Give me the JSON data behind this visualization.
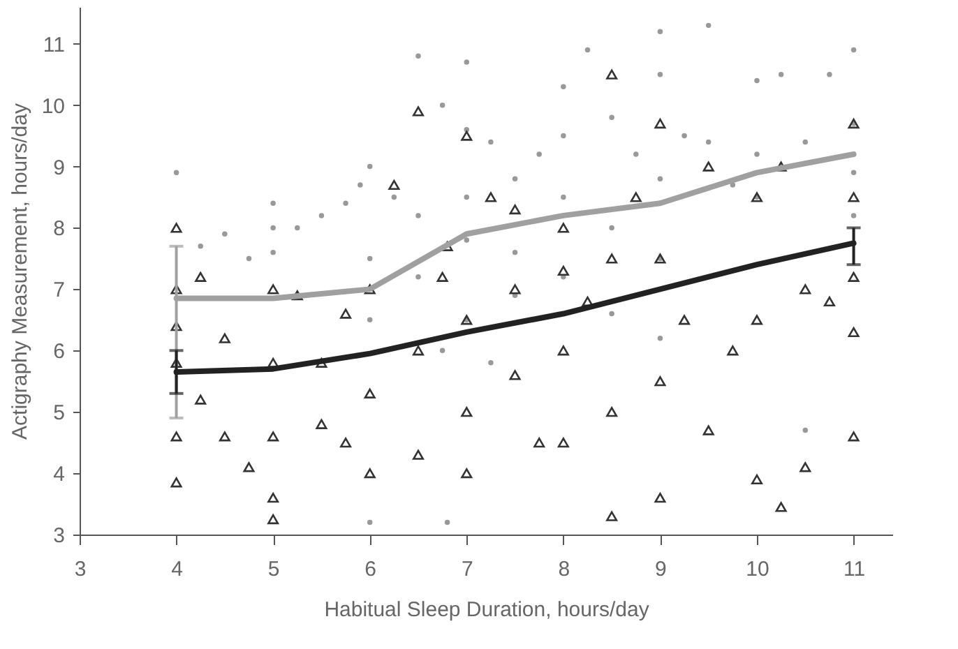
{
  "chart_data": {
    "type": "scatter",
    "xlabel": "Habitual Sleep Duration, hours/day",
    "ylabel": "Actigraphy Measurement, hours/day",
    "xlim": [
      3,
      11.4
    ],
    "ylim": [
      3,
      11.6
    ],
    "xticks": [
      3,
      4,
      5,
      6,
      7,
      8,
      9,
      10,
      11
    ],
    "yticks": [
      3,
      4,
      5,
      6,
      7,
      8,
      9,
      10,
      11
    ],
    "grid": false,
    "series": [
      {
        "type": "scatter",
        "marker": "circle",
        "color": "#999999",
        "x": [
          4,
          4.25,
          4.5,
          4.75,
          5,
          5,
          5,
          5.25,
          5.5,
          5.75,
          5.9,
          6,
          6,
          6,
          6.25,
          6.5,
          6.5,
          6.75,
          7,
          7,
          7,
          7,
          7,
          7.25,
          7.5,
          7.5,
          7.75,
          8,
          8,
          8,
          8.25,
          8.5,
          8.5,
          8.75,
          9,
          9,
          9,
          9,
          9,
          9.25,
          9.5,
          9.5,
          9.75,
          10,
          10,
          10,
          10.25,
          10.5,
          10.75,
          11,
          11,
          11,
          11,
          6,
          6.8,
          10.5,
          7.5,
          8.5,
          6.5,
          8,
          7.25,
          6.75
        ],
        "values": [
          8.9,
          7.7,
          7.9,
          7.5,
          8.4,
          8.0,
          7.6,
          8.0,
          8.2,
          8.4,
          8.7,
          9.0,
          7.5,
          6.5,
          8.5,
          10.8,
          8.2,
          10.0,
          10.7,
          9.6,
          8.5,
          7.8,
          6.5,
          9.4,
          8.8,
          7.6,
          9.2,
          10.3,
          8.5,
          7.2,
          10.9,
          9.8,
          8.0,
          9.2,
          11.2,
          10.5,
          8.8,
          7.5,
          6.2,
          9.5,
          11.3,
          9.4,
          8.7,
          10.4,
          9.2,
          8.5,
          10.5,
          9.4,
          10.5,
          10.9,
          9.7,
          8.9,
          8.2,
          3.2,
          3.2,
          4.7,
          6.9,
          6.6,
          7.2,
          9.5,
          5.8,
          6.0
        ]
      },
      {
        "type": "scatter",
        "marker": "triangle",
        "color": "#333333",
        "x": [
          4,
          4,
          4,
          4,
          4,
          4,
          4.25,
          4.25,
          4.5,
          4.5,
          4.75,
          5,
          5,
          5,
          5,
          5,
          5.25,
          5.5,
          5.5,
          5.75,
          5.75,
          6,
          6,
          6,
          6.25,
          6.5,
          6.5,
          6.5,
          6.75,
          7,
          7,
          7,
          7,
          7.25,
          7.5,
          7.5,
          7.75,
          8,
          8,
          8,
          8.25,
          8.5,
          8.5,
          8.5,
          8.5,
          8.75,
          9,
          9,
          9,
          9,
          9.25,
          9.5,
          9.5,
          9.75,
          10,
          10,
          10,
          10.25,
          10.25,
          10.5,
          10.5,
          10.75,
          11,
          11,
          11,
          11,
          11,
          6.8,
          7.5,
          8
        ],
        "values": [
          8.0,
          7.0,
          6.4,
          5.8,
          4.6,
          3.85,
          7.2,
          5.2,
          6.2,
          4.6,
          4.1,
          7.0,
          5.8,
          4.6,
          3.6,
          3.25,
          6.9,
          5.8,
          4.8,
          6.6,
          4.5,
          7.0,
          5.3,
          4.0,
          8.7,
          9.9,
          6.0,
          4.3,
          7.2,
          9.5,
          6.5,
          5.0,
          4.0,
          8.5,
          7.0,
          5.6,
          4.5,
          8.0,
          6.0,
          4.5,
          6.8,
          10.5,
          7.5,
          5.0,
          3.3,
          8.5,
          9.7,
          7.5,
          5.5,
          3.6,
          6.5,
          9.0,
          4.7,
          6.0,
          8.5,
          6.5,
          3.9,
          9.0,
          3.45,
          7.0,
          4.1,
          6.8,
          9.7,
          8.5,
          7.2,
          6.3,
          4.6,
          7.7,
          8.3,
          7.3
        ]
      },
      {
        "type": "line",
        "color": "#a0a0a0",
        "x": [
          4,
          5,
          6,
          7,
          8,
          9,
          10,
          11
        ],
        "values": [
          6.85,
          6.85,
          7.0,
          7.9,
          8.2,
          8.4,
          8.9,
          9.2
        ],
        "errors": [
          [
            4.9,
            7.7
          ],
          null,
          null,
          null,
          null,
          null,
          null,
          null
        ]
      },
      {
        "type": "line",
        "color": "#222222",
        "x": [
          4,
          5,
          6,
          7,
          8,
          9,
          10,
          11
        ],
        "values": [
          5.65,
          5.7,
          5.95,
          6.3,
          6.6,
          7.0,
          7.4,
          7.75
        ],
        "errors": [
          [
            5.3,
            6.0
          ],
          null,
          null,
          null,
          null,
          null,
          null,
          [
            7.4,
            8.0
          ]
        ]
      }
    ]
  }
}
